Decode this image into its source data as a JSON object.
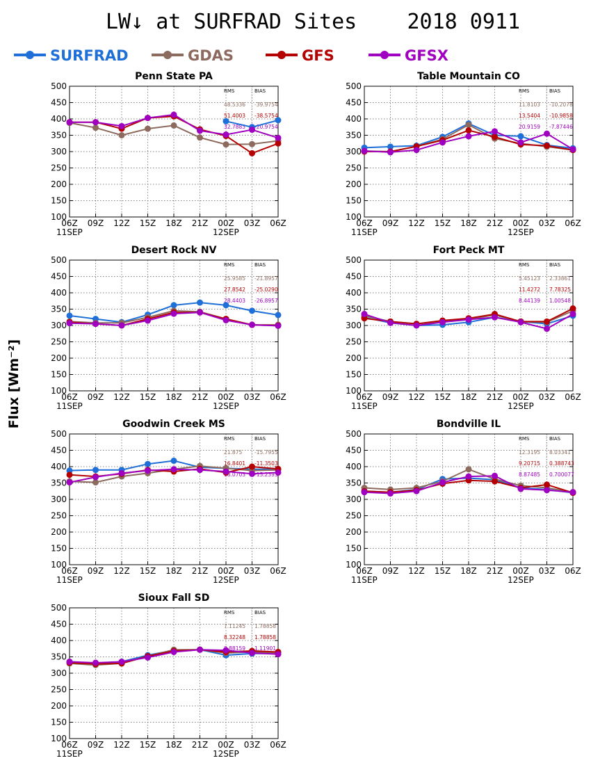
{
  "title": "LW↓ at SURFRAD Sites    2018 0911",
  "ylabel": "Flux [Wm⁻²]",
  "legend": [
    {
      "name": "SURFRAD",
      "color": "#1f6fd8"
    },
    {
      "name": "GDAS",
      "color": "#8c6a5d"
    },
    {
      "name": "GFS",
      "color": "#b40000"
    },
    {
      "name": "GFSX",
      "color": "#a000c0"
    }
  ],
  "stats_headers": {
    "rms": "RMS",
    "bias": "BIAS"
  },
  "chart_data": [
    {
      "type": "line",
      "title": "Penn State PA",
      "x": [
        "06Z",
        "09Z",
        "12Z",
        "15Z",
        "18Z",
        "21Z",
        "00Z",
        "03Z",
        "06Z"
      ],
      "date_labels": [
        {
          "at": "06Z",
          "text": "11SEP",
          "index": 0
        },
        {
          "at": "00Z",
          "text": "12SEP",
          "index": 6
        }
      ],
      "ylim": [
        100,
        500
      ],
      "yticks": [
        100,
        150,
        200,
        250,
        300,
        350,
        400,
        450,
        500
      ],
      "grid": true,
      "series": [
        {
          "name": "SURFRAD",
          "values": [
            null,
            null,
            null,
            null,
            null,
            null,
            393,
            375,
            396
          ]
        },
        {
          "name": "GDAS",
          "values": [
            388,
            373,
            350,
            370,
            380,
            343,
            322,
            323,
            333
          ]
        },
        {
          "name": "GFS",
          "values": [
            390,
            390,
            370,
            403,
            408,
            368,
            348,
            295,
            325
          ]
        },
        {
          "name": "GFSX",
          "values": [
            390,
            390,
            378,
            403,
            413,
            364,
            352,
            367,
            342
          ]
        }
      ],
      "stats": [
        {
          "rms": "48.5336",
          "bias": "-39.9754"
        },
        {
          "rms": "51.4003",
          "bias": "-38.5754"
        },
        {
          "rms": "32.7883",
          "bias": "-20.9754"
        }
      ]
    },
    {
      "type": "line",
      "title": "Table Mountain CO",
      "x": [
        "06Z",
        "09Z",
        "12Z",
        "15Z",
        "18Z",
        "21Z",
        "00Z",
        "03Z",
        "06Z"
      ],
      "date_labels": [
        {
          "at": "06Z",
          "text": "11SEP",
          "index": 0
        },
        {
          "at": "00Z",
          "text": "12SEP",
          "index": 6
        }
      ],
      "ylim": [
        100,
        500
      ],
      "yticks": [
        100,
        150,
        200,
        250,
        300,
        350,
        400,
        450,
        500
      ],
      "grid": true,
      "series": [
        {
          "name": "SURFRAD",
          "values": [
            312,
            315,
            318,
            345,
            386,
            350,
            347,
            320,
            310
          ]
        },
        {
          "name": "GDAS",
          "values": [
            302,
            300,
            316,
            338,
            382,
            340,
            325,
            315,
            305
          ]
        },
        {
          "name": "GFS",
          "values": [
            300,
            300,
            316,
            335,
            365,
            345,
            322,
            318,
            305
          ]
        },
        {
          "name": "GFSX",
          "values": [
            302,
            298,
            305,
            328,
            347,
            362,
            328,
            355,
            307
          ]
        }
      ],
      "stats": [
        {
          "rms": "11.8103",
          "bias": "-10.2078"
        },
        {
          "rms": "13.5404",
          "bias": "-10.9858"
        },
        {
          "rms": "20.9159",
          "bias": "-7.87446"
        }
      ]
    },
    {
      "type": "line",
      "title": "Desert Rock NV",
      "x": [
        "06Z",
        "09Z",
        "12Z",
        "15Z",
        "18Z",
        "21Z",
        "00Z",
        "03Z",
        "06Z"
      ],
      "date_labels": [
        {
          "at": "06Z",
          "text": "11SEP",
          "index": 0
        },
        {
          "at": "00Z",
          "text": "12SEP",
          "index": 6
        }
      ],
      "ylim": [
        100,
        500
      ],
      "yticks": [
        100,
        150,
        200,
        250,
        300,
        350,
        400,
        450,
        500
      ],
      "grid": true,
      "series": [
        {
          "name": "SURFRAD",
          "values": [
            330,
            320,
            310,
            333,
            362,
            370,
            362,
            345,
            332
          ]
        },
        {
          "name": "GDAS",
          "values": [
            312,
            308,
            308,
            325,
            345,
            342,
            320,
            302,
            302
          ]
        },
        {
          "name": "GFS",
          "values": [
            310,
            305,
            300,
            320,
            340,
            340,
            320,
            302,
            300
          ]
        },
        {
          "name": "GFSX",
          "values": [
            307,
            305,
            300,
            315,
            336,
            340,
            316,
            302,
            299
          ]
        }
      ],
      "stats": [
        {
          "rms": "25.9585",
          "bias": "-21.8957"
        },
        {
          "rms": "27.8542",
          "bias": "-25.0290"
        },
        {
          "rms": "28.4403",
          "bias": "-26.8957"
        }
      ]
    },
    {
      "type": "line",
      "title": "Fort Peck MT",
      "x": [
        "06Z",
        "09Z",
        "12Z",
        "15Z",
        "18Z",
        "21Z",
        "00Z",
        "03Z",
        "06Z"
      ],
      "date_labels": [
        {
          "at": "06Z",
          "text": "11SEP",
          "index": 0
        },
        {
          "at": "00Z",
          "text": "12SEP",
          "index": 6
        }
      ],
      "ylim": [
        100,
        500
      ],
      "yticks": [
        100,
        150,
        200,
        250,
        300,
        350,
        400,
        450,
        500
      ],
      "grid": true,
      "series": [
        {
          "name": "SURFRAD",
          "values": [
            325,
            308,
            300,
            302,
            310,
            325,
            312,
            305,
            330
          ]
        },
        {
          "name": "GDAS",
          "values": [
            330,
            312,
            305,
            312,
            320,
            332,
            312,
            310,
            345
          ]
        },
        {
          "name": "GFS",
          "values": [
            322,
            312,
            305,
            315,
            322,
            335,
            312,
            312,
            352
          ]
        },
        {
          "name": "GFSX",
          "values": [
            335,
            308,
            300,
            310,
            318,
            325,
            310,
            290,
            335
          ]
        }
      ],
      "stats": [
        {
          "rms": "5.45123",
          "bias": "2.33861"
        },
        {
          "rms": "11.4272",
          "bias": "7.78325"
        },
        {
          "rms": "8.44139",
          "bias": "1.00548"
        }
      ]
    },
    {
      "type": "line",
      "title": "Goodwin Creek MS",
      "x": [
        "06Z",
        "09Z",
        "12Z",
        "15Z",
        "18Z",
        "21Z",
        "00Z",
        "03Z",
        "06Z"
      ],
      "date_labels": [
        {
          "at": "06Z",
          "text": "11SEP",
          "index": 0
        },
        {
          "at": "00Z",
          "text": "12SEP",
          "index": 6
        }
      ],
      "ylim": [
        100,
        500
      ],
      "yticks": [
        100,
        150,
        200,
        250,
        300,
        350,
        400,
        450,
        500
      ],
      "grid": true,
      "series": [
        {
          "name": "SURFRAD",
          "values": [
            388,
            390,
            390,
            408,
            418,
            398,
            395,
            392,
            392
          ]
        },
        {
          "name": "GDAS",
          "values": [
            355,
            352,
            370,
            380,
            392,
            402,
            395,
            388,
            390
          ]
        },
        {
          "name": "GFS",
          "values": [
            375,
            370,
            378,
            390,
            385,
            393,
            382,
            400,
            393
          ]
        },
        {
          "name": "GFSX",
          "values": [
            352,
            368,
            380,
            388,
            392,
            390,
            385,
            378,
            382
          ]
        }
      ],
      "stats": [
        {
          "rms": "21.875",
          "bias": "-15.7955"
        },
        {
          "rms": "16.8401",
          "bias": "-11.3503"
        },
        {
          "rms": "18.0703",
          "bias": "-15.2393"
        }
      ]
    },
    {
      "type": "line",
      "title": "Bondville IL",
      "x": [
        "06Z",
        "09Z",
        "12Z",
        "15Z",
        "18Z",
        "21Z",
        "00Z",
        "03Z",
        "06Z"
      ],
      "date_labels": [
        {
          "at": "06Z",
          "text": "11SEP",
          "index": 0
        },
        {
          "at": "00Z",
          "text": "12SEP",
          "index": 6
        }
      ],
      "ylim": [
        100,
        500
      ],
      "yticks": [
        100,
        150,
        200,
        250,
        300,
        350,
        400,
        450,
        500
      ],
      "grid": true,
      "series": [
        {
          "name": "SURFRAD",
          "values": [
            325,
            322,
            330,
            362,
            365,
            360,
            335,
            330,
            320
          ]
        },
        {
          "name": "GDAS",
          "values": [
            335,
            330,
            335,
            355,
            392,
            362,
            342,
            335,
            322
          ]
        },
        {
          "name": "GFS",
          "values": [
            325,
            322,
            328,
            348,
            358,
            355,
            335,
            345,
            320
          ]
        },
        {
          "name": "GFSX",
          "values": [
            322,
            318,
            325,
            352,
            370,
            372,
            332,
            328,
            322
          ]
        }
      ],
      "stats": [
        {
          "rms": "12.3195",
          "bias": "8.03341"
        },
        {
          "rms": "9.20715",
          "bias": "0.388743"
        },
        {
          "rms": "8.87485",
          "bias": "0.700077"
        }
      ]
    },
    {
      "type": "line",
      "title": "Sioux Fall SD",
      "x": [
        "06Z",
        "09Z",
        "12Z",
        "15Z",
        "18Z",
        "21Z",
        "00Z",
        "03Z",
        "06Z"
      ],
      "date_labels": [
        {
          "at": "06Z",
          "text": "11SEP",
          "index": 0
        },
        {
          "at": "00Z",
          "text": "12SEP",
          "index": 6
        }
      ],
      "ylim": [
        100,
        500
      ],
      "yticks": [
        100,
        150,
        200,
        250,
        300,
        350,
        400,
        450,
        500
      ],
      "grid": true,
      "series": [
        {
          "name": "SURFRAD",
          "values": [
            335,
            330,
            335,
            355,
            370,
            372,
            355,
            360,
            360
          ]
        },
        {
          "name": "GDAS",
          "values": [
            330,
            325,
            330,
            352,
            372,
            372,
            362,
            365,
            362
          ]
        },
        {
          "name": "GFS",
          "values": [
            332,
            328,
            330,
            352,
            368,
            372,
            365,
            368,
            365
          ]
        },
        {
          "name": "GFSX",
          "values": [
            335,
            332,
            335,
            348,
            365,
            372,
            370,
            362,
            358
          ]
        }
      ],
      "stats": [
        {
          "rms": "7.11245",
          "bias": "1.78858"
        },
        {
          "rms": "8.32248",
          "bias": "1.78858"
        },
        {
          "rms": "8.88159",
          "bias": "1.11901"
        }
      ]
    }
  ]
}
